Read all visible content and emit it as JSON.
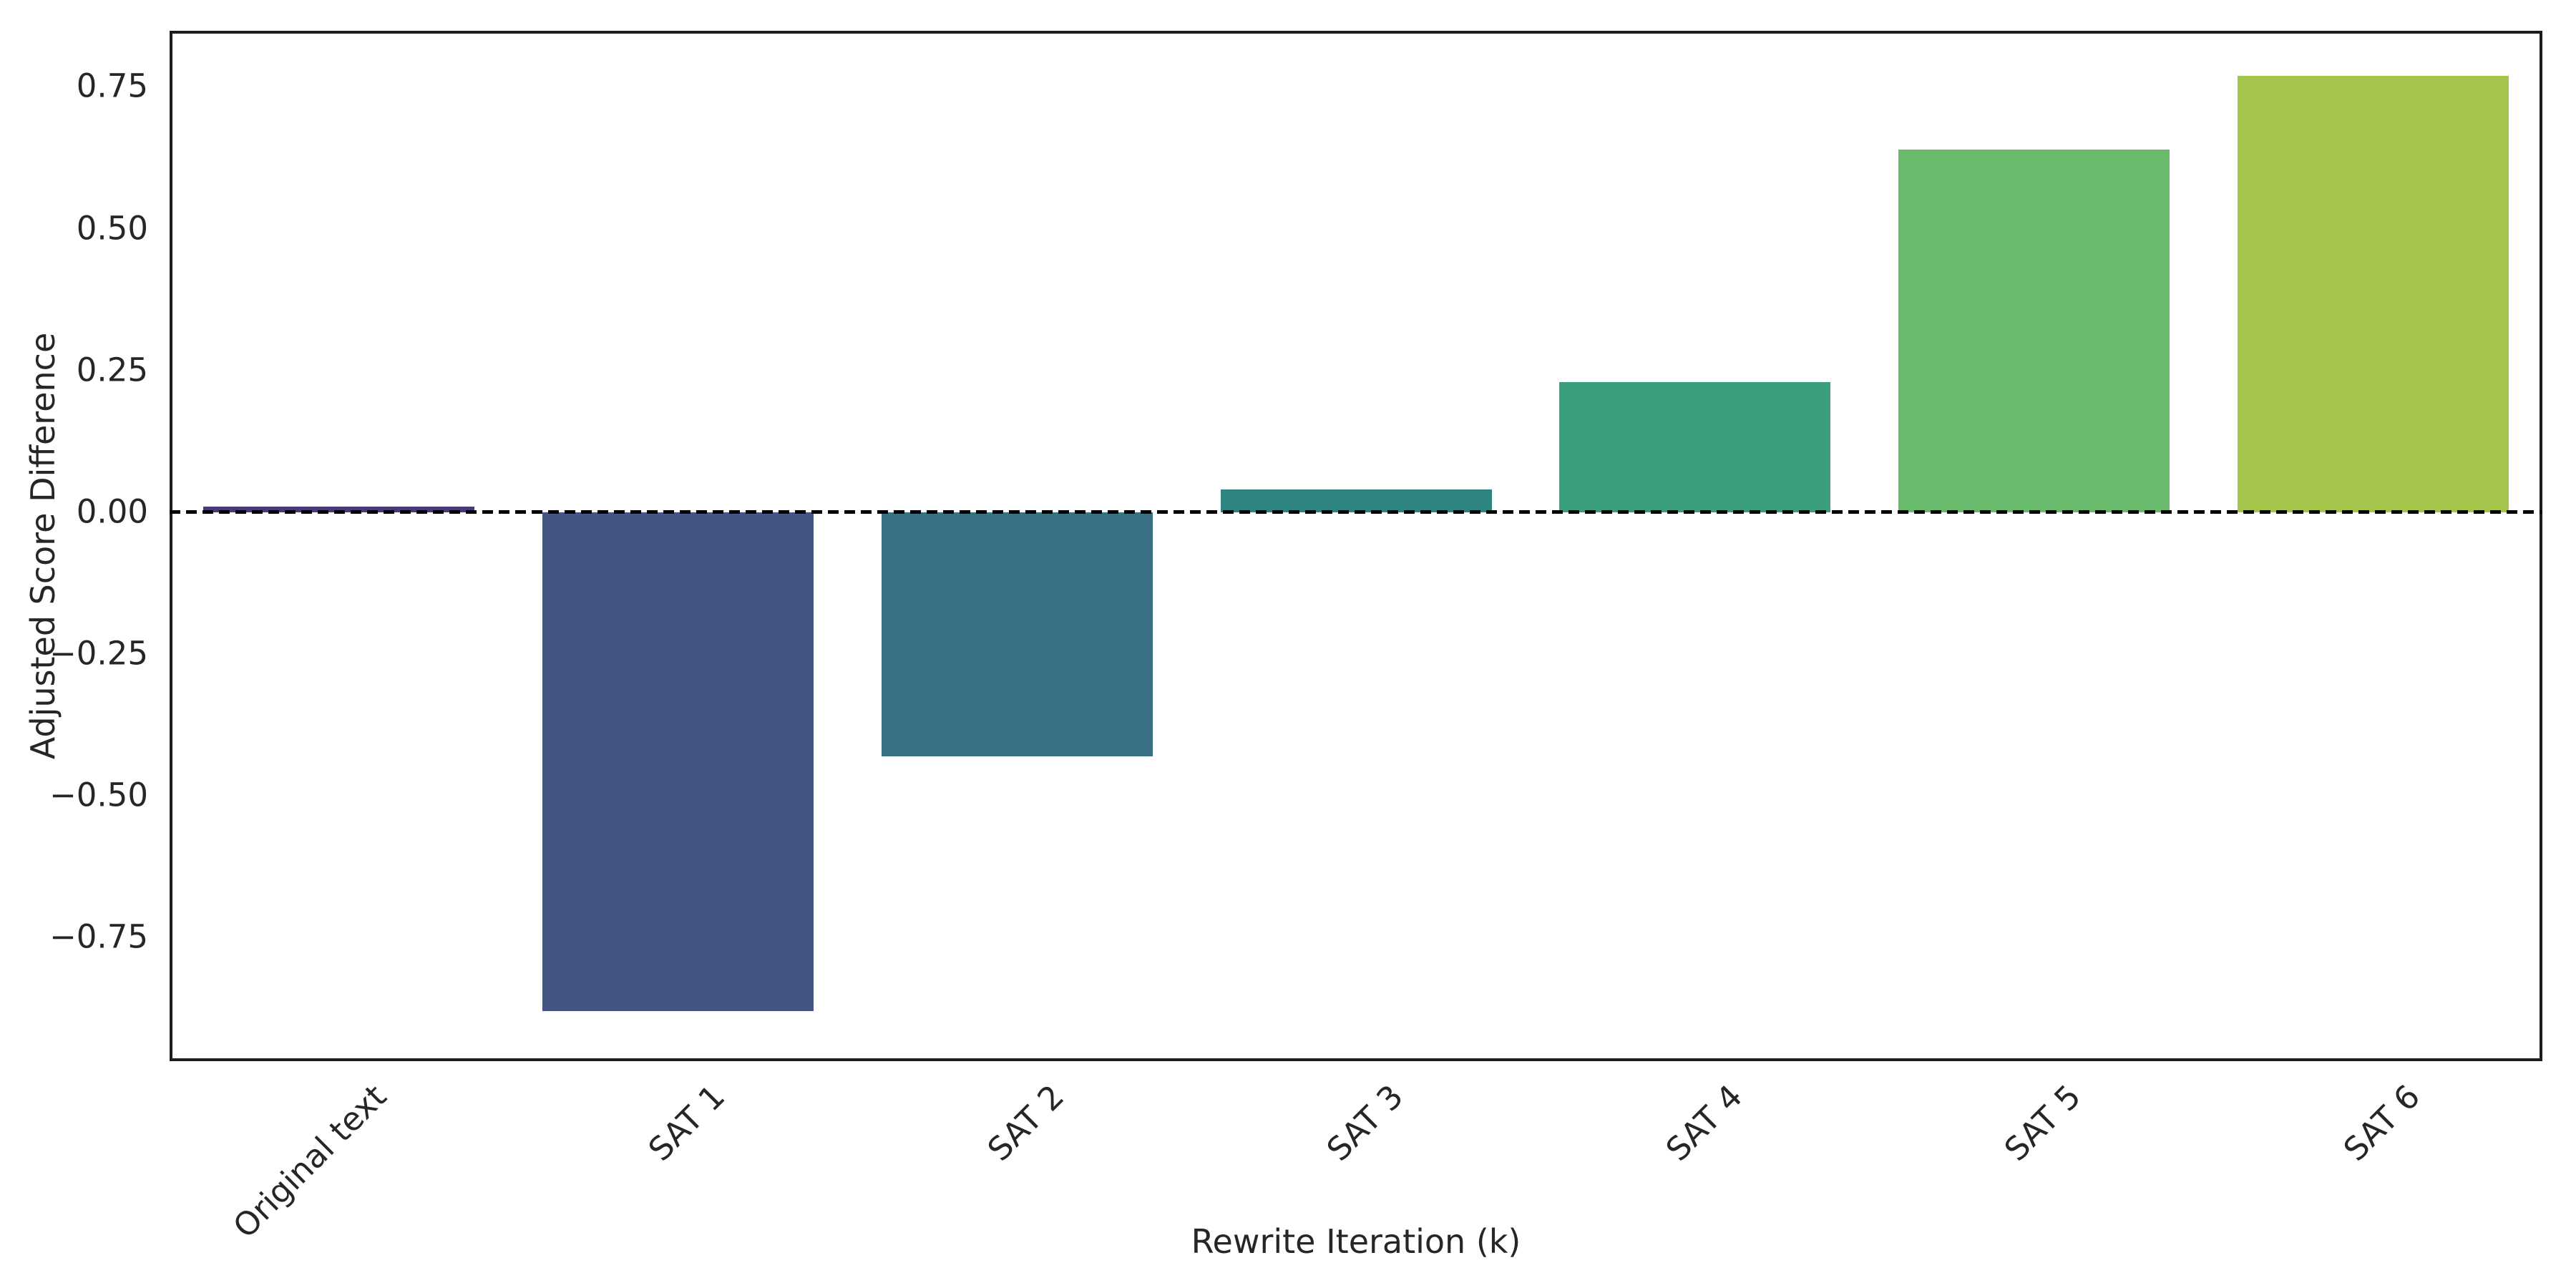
{
  "figure": {
    "background_color": "#ffffff"
  },
  "chart_data": {
    "type": "bar",
    "title": "",
    "xlabel": "Rewrite Iteration (k)",
    "ylabel": "Adjusted Score Difference",
    "categories": [
      "Original text",
      "SAT 1",
      "SAT 2",
      "SAT 3",
      "SAT 4",
      "SAT 5",
      "SAT 6"
    ],
    "values": [
      0.01,
      -0.88,
      -0.43,
      0.04,
      0.23,
      0.64,
      0.77
    ],
    "bar_colors": [
      "#4a3a78",
      "#455581",
      "#3a7083",
      "#2e8580",
      "#3b9f7e",
      "#69bb6b",
      "#a3c64a"
    ],
    "ylim": [
      -0.968,
      0.849
    ],
    "yticks": [
      {
        "value": 0.75,
        "label": "0.75"
      },
      {
        "value": 0.5,
        "label": "0.50"
      },
      {
        "value": 0.25,
        "label": "0.25"
      },
      {
        "value": 0.0,
        "label": "0.00"
      },
      {
        "value": -0.25,
        "label": "−0.25"
      },
      {
        "value": -0.5,
        "label": "−0.50"
      },
      {
        "value": -0.75,
        "label": "−0.75"
      }
    ],
    "reference_line": {
      "value": 0.0,
      "style": "dashed",
      "color": "#000000"
    },
    "grid": false,
    "legend": false,
    "bar_width_fraction": 0.8,
    "x_tick_rotation_deg": 45,
    "axis_color": "#1c1c1c",
    "text_color": "#262626"
  }
}
